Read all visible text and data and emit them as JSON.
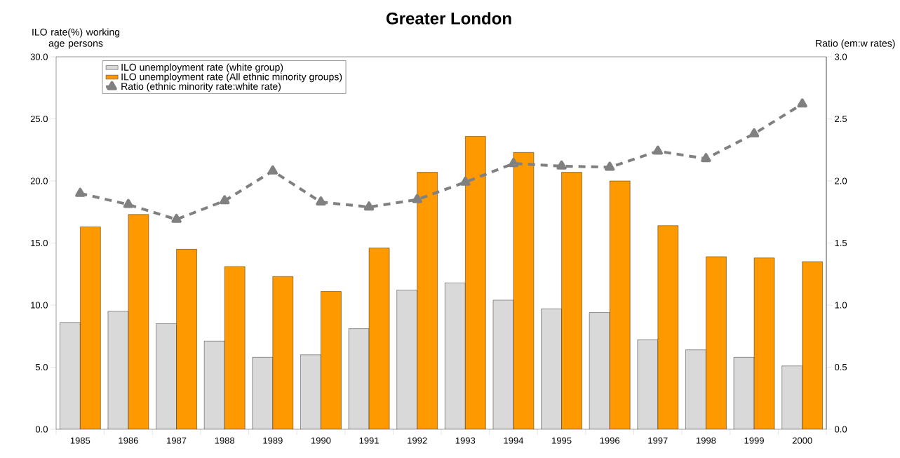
{
  "chart_data": {
    "type": "bar",
    "title": "Greater London",
    "ylabel": "ILO rate(%) working age persons",
    "y2label": "Ratio (em:w rates)",
    "categories": [
      "1985",
      "1986",
      "1987",
      "1988",
      "1989",
      "1990",
      "1991",
      "1992",
      "1993",
      "1994",
      "1995",
      "1996",
      "1997",
      "1998",
      "1999",
      "2000"
    ],
    "series": [
      {
        "name": "ILO unemployment rate (white group)",
        "color": "#d9d9d9",
        "values": [
          8.6,
          9.5,
          8.5,
          7.1,
          5.8,
          6.0,
          8.1,
          11.2,
          11.8,
          10.4,
          9.7,
          9.4,
          7.2,
          6.4,
          5.8,
          5.1
        ]
      },
      {
        "name": "ILO unemployment rate (All ethnic minority groups)",
        "color": "#ff9900",
        "values": [
          16.3,
          17.3,
          14.5,
          13.1,
          12.3,
          11.1,
          14.6,
          20.7,
          23.6,
          22.3,
          20.7,
          20.0,
          16.4,
          13.9,
          13.8,
          13.5
        ]
      },
      {
        "name": "Ratio (ethnic minority rate:white rate)",
        "type": "line",
        "axis": "y2",
        "color": "#808080",
        "line_style": "dashed",
        "marker": "triangle",
        "values": [
          1.9,
          1.81,
          1.69,
          1.84,
          2.08,
          1.83,
          1.79,
          1.85,
          1.99,
          2.14,
          2.12,
          2.11,
          2.24,
          2.18,
          2.38,
          2.62
        ]
      }
    ],
    "ylim": [
      0,
      30
    ],
    "yticks": [
      {
        "value": 0,
        "label": "0.0"
      },
      {
        "value": 5,
        "label": "5.0"
      },
      {
        "value": 10,
        "label": "10.0"
      },
      {
        "value": 15,
        "label": "15.0"
      },
      {
        "value": 20,
        "label": "20.0"
      },
      {
        "value": 25,
        "label": "25.0"
      },
      {
        "value": 30,
        "label": "30.0"
      }
    ],
    "y2lim": [
      0,
      3
    ],
    "y2ticks": [
      {
        "value": 0,
        "label": "0.0"
      },
      {
        "value": 0.5,
        "label": "0.5"
      },
      {
        "value": 1,
        "label": "1.0"
      },
      {
        "value": 1.5,
        "label": "1.5"
      },
      {
        "value": 2,
        "label": "2.0"
      },
      {
        "value": 2.5,
        "label": "2.5"
      },
      {
        "value": 3,
        "label": "3.0"
      }
    ],
    "legend": "top left",
    "grid": false
  }
}
